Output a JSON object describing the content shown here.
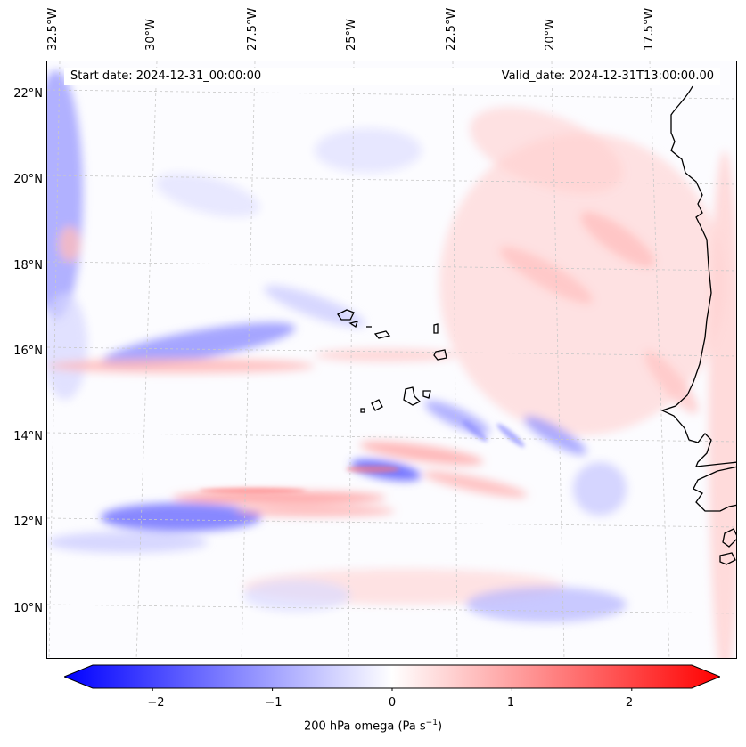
{
  "map": {
    "header": {
      "start_date": "Start date: 2024-12-31_00:00:00",
      "valid_date": "Valid_date: 2024-12-31T13:00:00.00"
    },
    "lon_labels": [
      "32.5°W",
      "30°W",
      "27.5°W",
      "25°W",
      "22.5°W",
      "20°W",
      "17.5°W"
    ],
    "lat_labels": [
      "22°N",
      "20°N",
      "18°N",
      "16°N",
      "14°N",
      "12°N",
      "10°N"
    ],
    "colors": {
      "negative": "#0000ff",
      "positive": "#ff0000",
      "neutral": "#ffffff",
      "coastline": "#000000",
      "gridline": "#c8c8c8"
    }
  },
  "colorbar": {
    "min": -2.5,
    "max": 2.5,
    "ticks": [
      "−2",
      "−1",
      "0",
      "1",
      "2"
    ],
    "tick_values": [
      -2,
      -1,
      0,
      1,
      2
    ],
    "label_main": "200 hPa omega (Pa s",
    "label_exp": "−1",
    "label_end": ")"
  }
}
